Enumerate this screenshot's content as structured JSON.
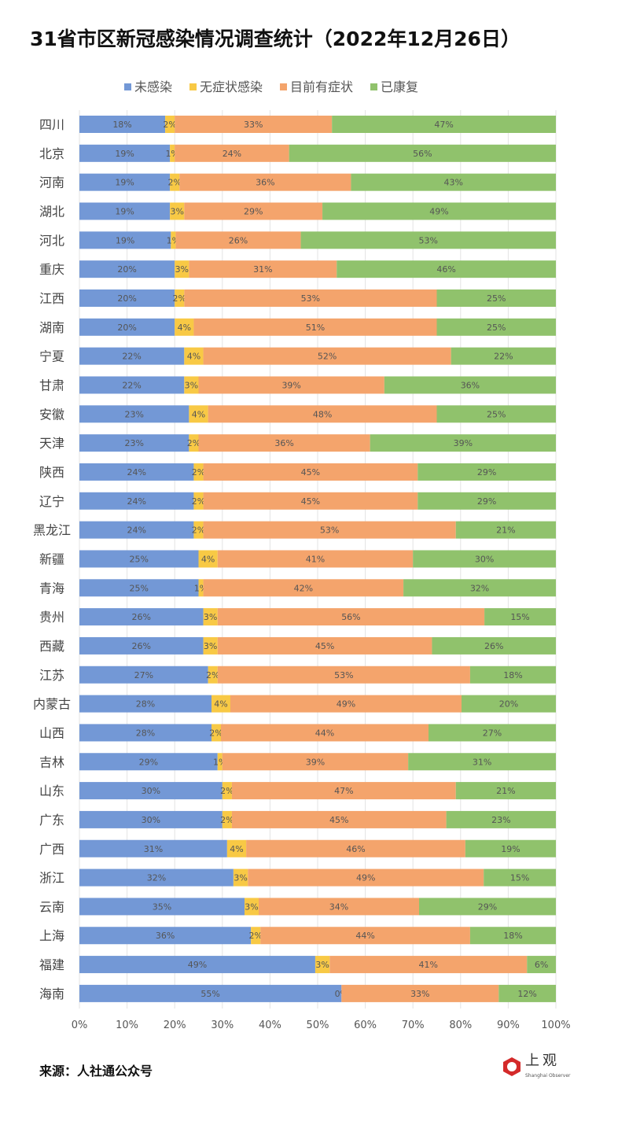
{
  "chart_data": {
    "type": "bar",
    "stacked": true,
    "orientation": "horizontal",
    "title": "31省市区新冠感染情况调查统计（2022年12月26日）",
    "source": "来源：人社通公众号",
    "logo": {
      "cn": "上观",
      "en": "Shanghai Observer"
    },
    "xlim": [
      0,
      100
    ],
    "x_ticks": [
      "0%",
      "10%",
      "20%",
      "30%",
      "40%",
      "50%",
      "60%",
      "70%",
      "80%",
      "90%",
      "100%"
    ],
    "grid": true,
    "legend_position": "top",
    "categories": [
      "四川",
      "北京",
      "河南",
      "湖北",
      "河北",
      "重庆",
      "江西",
      "湖南",
      "宁夏",
      "甘肃",
      "安徽",
      "天津",
      "陕西",
      "辽宁",
      "黑龙江",
      "新疆",
      "青海",
      "贵州",
      "西藏",
      "江苏",
      "内蒙古",
      "山西",
      "吉林",
      "山东",
      "广东",
      "广西",
      "浙江",
      "云南",
      "上海",
      "福建",
      "海南"
    ],
    "series": [
      {
        "name": "未感染",
        "color": "#7398d6",
        "values": [
          18,
          19,
          19,
          19,
          19,
          20,
          20,
          20,
          22,
          22,
          23,
          23,
          24,
          24,
          24,
          25,
          25,
          26,
          26,
          27,
          28,
          28,
          29,
          30,
          30,
          31,
          32,
          35,
          36,
          49,
          55
        ]
      },
      {
        "name": "无症状感染",
        "color": "#f8c945",
        "values": [
          2,
          1,
          2,
          3,
          1,
          3,
          2,
          4,
          4,
          3,
          4,
          2,
          2,
          2,
          2,
          4,
          1,
          3,
          3,
          2,
          4,
          2,
          1,
          2,
          2,
          4,
          3,
          3,
          2,
          3,
          0
        ]
      },
      {
        "name": "目前有症状",
        "color": "#f4a46c",
        "values": [
          33,
          24,
          36,
          29,
          26,
          31,
          53,
          51,
          52,
          39,
          48,
          36,
          45,
          45,
          53,
          41,
          42,
          56,
          45,
          53,
          49,
          44,
          39,
          47,
          45,
          46,
          49,
          34,
          44,
          41,
          33
        ]
      },
      {
        "name": "已康复",
        "color": "#90c26c",
        "values": [
          47,
          56,
          43,
          49,
          53,
          46,
          25,
          25,
          22,
          36,
          25,
          39,
          29,
          29,
          21,
          30,
          32,
          15,
          26,
          18,
          20,
          27,
          31,
          21,
          23,
          19,
          15,
          29,
          18,
          6,
          12
        ]
      }
    ]
  }
}
